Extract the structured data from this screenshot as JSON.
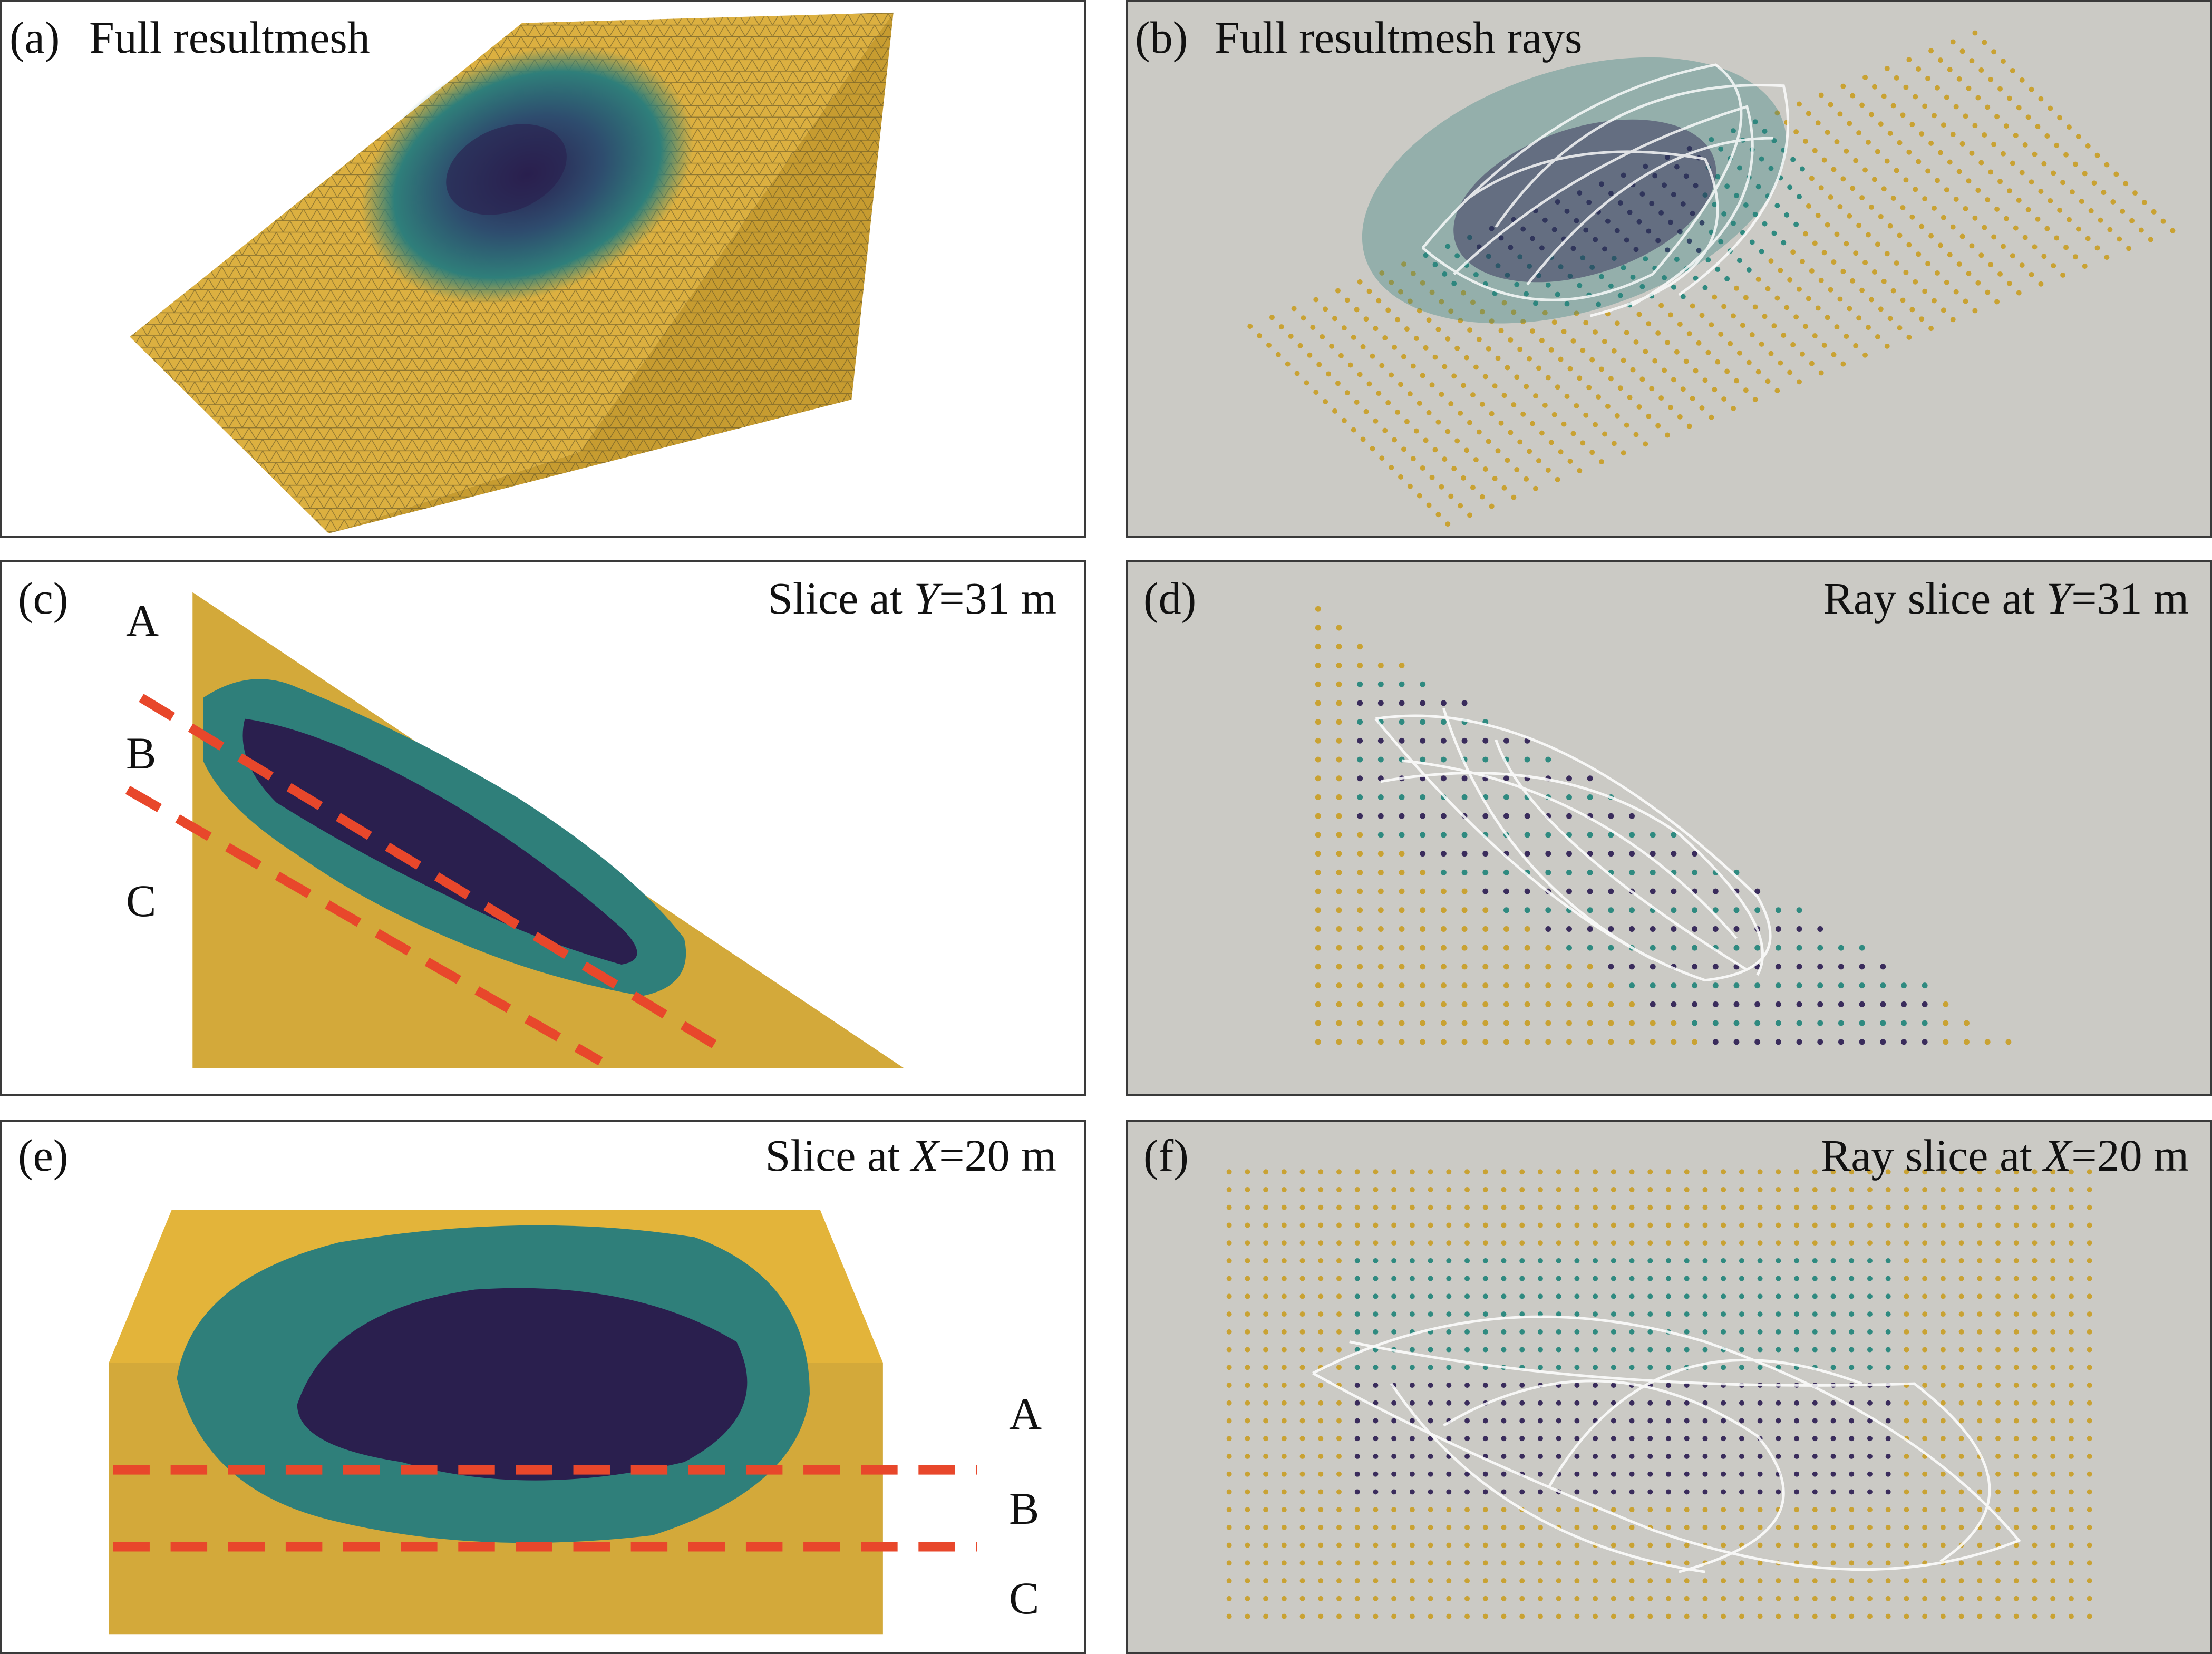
{
  "panels": {
    "a": {
      "label": "(a)",
      "title": "Full resultmesh"
    },
    "b": {
      "label": "(b)",
      "title": "Full resultmesh rays"
    },
    "c": {
      "label": "(c)",
      "title_prefix": "Slice at ",
      "title_var": "Y",
      "title_suffix": "=31 m",
      "zones": [
        "A",
        "B",
        "C"
      ]
    },
    "d": {
      "label": "(d)",
      "title_prefix": "Ray slice at ",
      "title_var": "Y",
      "title_suffix": "=31 m"
    },
    "e": {
      "label": "(e)",
      "title_prefix": "Slice at ",
      "title_var": "X",
      "title_suffix": "=20 m",
      "zones": [
        "A",
        "B",
        "C"
      ]
    },
    "f": {
      "label": "(f)",
      "title_prefix": "Ray slice at ",
      "title_var": "X",
      "title_suffix": "=20 m"
    }
  },
  "colors": {
    "mesh_yellow": "#d9ad3c",
    "anomaly_teal": "#2f7f7a",
    "anomaly_dark": "#2a1f4e",
    "dashed_line": "#e8472b",
    "ray_white": "#ffffff",
    "background_gray": "#cbcac5"
  }
}
